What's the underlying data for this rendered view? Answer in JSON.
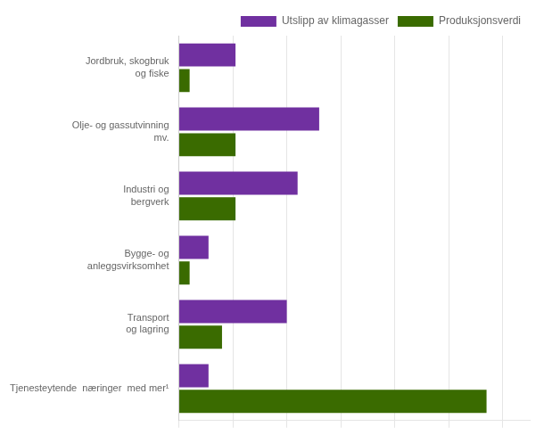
{
  "chart_data": {
    "type": "bar",
    "orientation": "horizontal",
    "categories": [
      "Jordbruk, skogbruk\nog fiske",
      "Olje- og gassutvinning\nmv.",
      "Industri og\nbergverk",
      "Bygge- og\nanleggsvirksomhet",
      "Transport\nog lagring",
      "Tjenesteytende  næringer  med mer¹"
    ],
    "series": [
      {
        "name": "Utslipp av klimagasser",
        "color": "#7030a0",
        "values": [
          10.5,
          26.0,
          22.0,
          5.5,
          20.0,
          5.5
        ]
      },
      {
        "name": "Produksjonsverdi",
        "color": "#3a6b00",
        "values": [
          2.0,
          10.5,
          10.5,
          2.0,
          8.0,
          57.0
        ]
      }
    ],
    "xlim": [
      0,
      65
    ],
    "xticks": [
      0,
      10,
      20,
      30,
      40,
      50,
      60
    ],
    "grid": true,
    "legend": "upper right",
    "tick_labels": "y"
  }
}
